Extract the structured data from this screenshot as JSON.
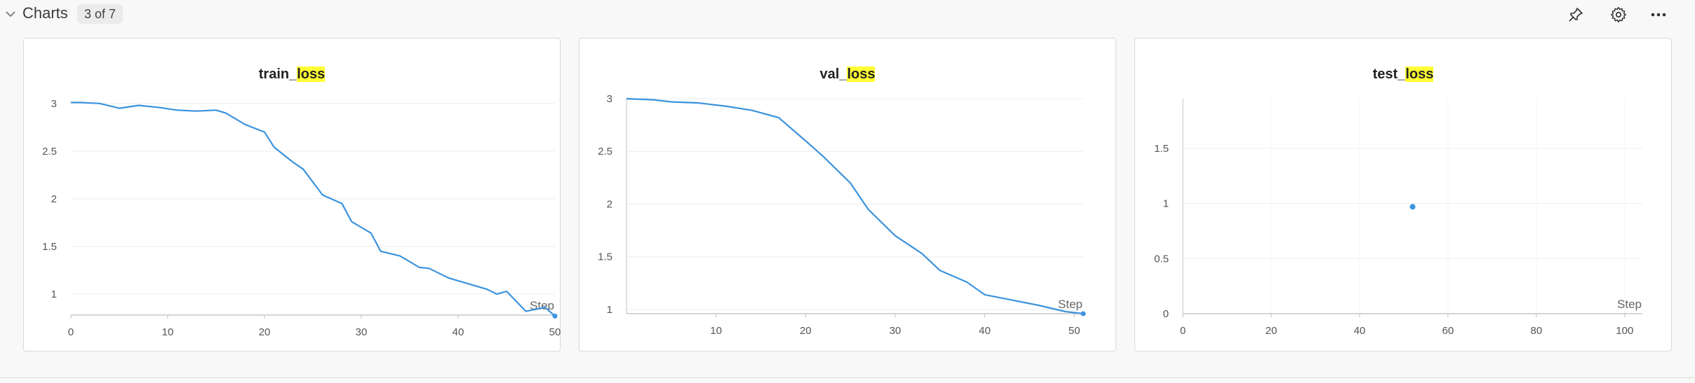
{
  "section": {
    "title": "Charts",
    "count": "3 of 7",
    "icons": [
      "chevron-down-icon",
      "pin-icon",
      "gear-icon",
      "more-icon"
    ]
  },
  "colors": {
    "line": "#3b93dd",
    "highlight": "#ffff33",
    "grid": "#eeeeee"
  },
  "panels": [
    {
      "title_prefix": "train_",
      "title_hl": "loss",
      "x_label": "Step",
      "chart_data": {
        "type": "line",
        "title": "train_loss",
        "xlabel": "Step",
        "xlim": [
          0,
          50
        ],
        "ylim": [
          0.78,
          3.05
        ],
        "x_ticks": [
          0,
          10,
          20,
          30,
          40,
          50
        ],
        "y_ticks": [
          1,
          1.5,
          2,
          2.5,
          3
        ],
        "series": [
          {
            "x": [
              0,
              1,
              3,
              5,
              7,
              9,
              11,
              13,
              15,
              16,
              18,
              20,
              21,
              23,
              24,
              26,
              28,
              29,
              31,
              32,
              34,
              36,
              37,
              39,
              41,
              43,
              44,
              45,
              47,
              49,
              50
            ],
            "y": [
              3.01,
              3.01,
              3.0,
              2.95,
              2.98,
              2.96,
              2.93,
              2.92,
              2.93,
              2.9,
              2.78,
              2.7,
              2.54,
              2.38,
              2.31,
              2.04,
              1.95,
              1.76,
              1.64,
              1.45,
              1.4,
              1.28,
              1.27,
              1.17,
              1.11,
              1.05,
              1.0,
              1.03,
              0.82,
              0.86,
              0.77
            ]
          }
        ]
      }
    },
    {
      "title_prefix": "val_",
      "title_hl": "loss",
      "x_label": "Step",
      "chart_data": {
        "type": "line",
        "title": "val_loss",
        "xlabel": "Step",
        "xlim": [
          0,
          51
        ],
        "ylim": [
          0.96,
          3.0
        ],
        "x_ticks": [
          10,
          20,
          30,
          40,
          50
        ],
        "y_ticks": [
          1,
          1.5,
          2,
          2.5,
          3
        ],
        "series": [
          {
            "x": [
              0,
              3,
              5,
              8,
              11,
              14,
              17,
              20,
              22,
              25,
              27,
              30,
              33,
              35,
              38,
              40,
              43,
              46,
              49,
              51
            ],
            "y": [
              3.0,
              2.99,
              2.97,
              2.96,
              2.93,
              2.89,
              2.82,
              2.6,
              2.45,
              2.2,
              1.95,
              1.7,
              1.53,
              1.37,
              1.26,
              1.14,
              1.09,
              1.04,
              0.98,
              0.96
            ]
          }
        ]
      }
    },
    {
      "title_prefix": "test_",
      "title_hl": "loss",
      "x_label": "Step",
      "chart_data": {
        "type": "scatter",
        "title": "test_loss",
        "xlabel": "Step",
        "xlim": [
          0,
          104
        ],
        "ylim": [
          0,
          1.95
        ],
        "x_ticks": [
          0,
          20,
          40,
          60,
          80,
          100
        ],
        "y_ticks": [
          0,
          0.5,
          1,
          1.5
        ],
        "series": [
          {
            "x": [
              52
            ],
            "y": [
              0.97
            ]
          }
        ]
      }
    }
  ]
}
